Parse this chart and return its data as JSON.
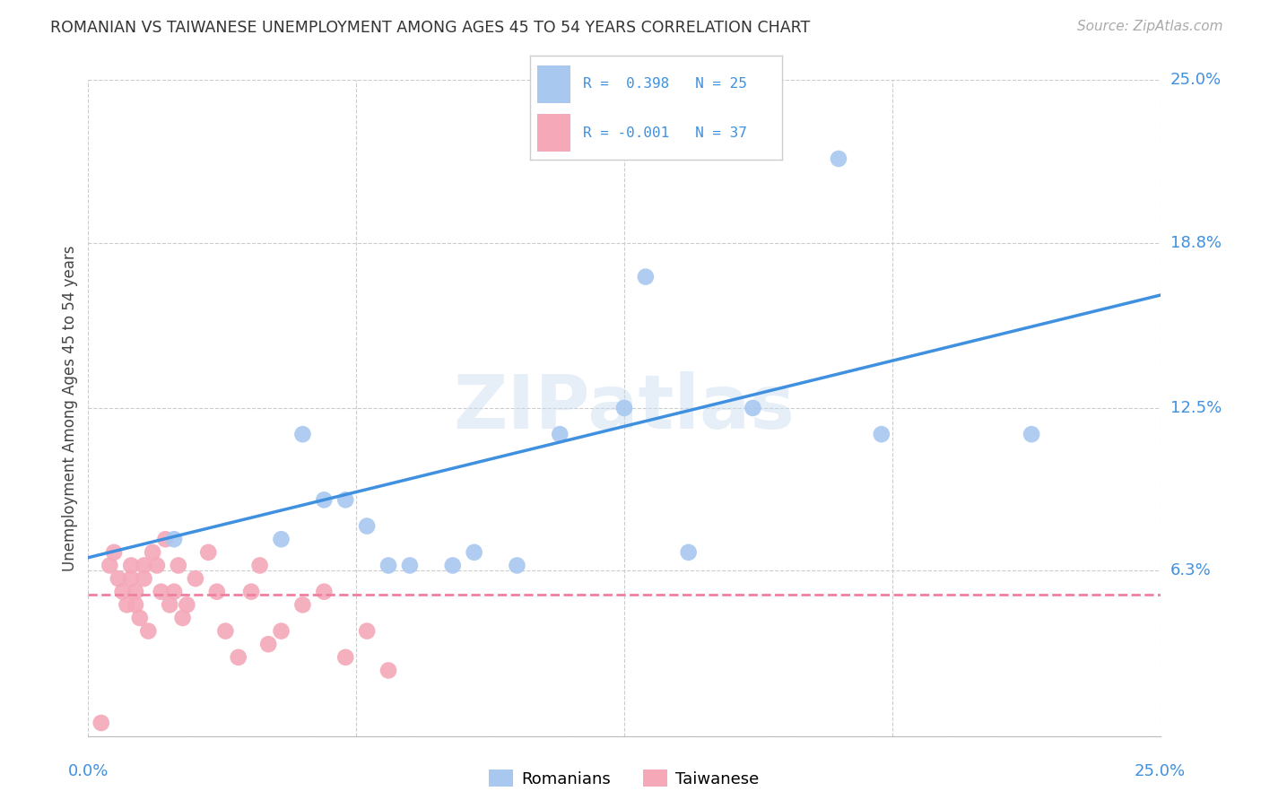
{
  "title": "ROMANIAN VS TAIWANESE UNEMPLOYMENT AMONG AGES 45 TO 54 YEARS CORRELATION CHART",
  "source": "Source: ZipAtlas.com",
  "ylabel": "Unemployment Among Ages 45 to 54 years",
  "xlim": [
    0.0,
    0.25
  ],
  "ylim": [
    0.0,
    0.25
  ],
  "yticks": [
    0.0,
    0.063,
    0.125,
    0.188,
    0.25
  ],
  "ytick_labels": [
    "",
    "6.3%",
    "12.5%",
    "18.8%",
    "25.0%"
  ],
  "watermark": "ZIPatlas",
  "romanian_color": "#a8c8f0",
  "taiwanese_color": "#f4a8b8",
  "line_romanian_color": "#4090e0",
  "line_taiwanese_color": "#f080a0",
  "romanian_x": [
    0.02,
    0.045,
    0.05,
    0.055,
    0.06,
    0.065,
    0.07,
    0.075,
    0.085,
    0.09,
    0.1,
    0.11,
    0.125,
    0.13,
    0.14,
    0.155,
    0.175,
    0.185,
    0.22
  ],
  "romanian_y": [
    0.075,
    0.075,
    0.115,
    0.09,
    0.09,
    0.08,
    0.065,
    0.065,
    0.065,
    0.07,
    0.065,
    0.115,
    0.125,
    0.175,
    0.07,
    0.125,
    0.22,
    0.115,
    0.115
  ],
  "taiwanese_x": [
    0.003,
    0.005,
    0.006,
    0.007,
    0.008,
    0.009,
    0.01,
    0.01,
    0.011,
    0.011,
    0.012,
    0.013,
    0.013,
    0.014,
    0.015,
    0.016,
    0.017,
    0.018,
    0.019,
    0.02,
    0.021,
    0.022,
    0.023,
    0.025,
    0.028,
    0.03,
    0.032,
    0.035,
    0.038,
    0.04,
    0.042,
    0.045,
    0.05,
    0.055,
    0.06,
    0.065,
    0.07
  ],
  "taiwanese_y": [
    0.005,
    0.065,
    0.07,
    0.06,
    0.055,
    0.05,
    0.065,
    0.06,
    0.055,
    0.05,
    0.045,
    0.065,
    0.06,
    0.04,
    0.07,
    0.065,
    0.055,
    0.075,
    0.05,
    0.055,
    0.065,
    0.045,
    0.05,
    0.06,
    0.07,
    0.055,
    0.04,
    0.03,
    0.055,
    0.065,
    0.035,
    0.04,
    0.05,
    0.055,
    0.03,
    0.04,
    0.025
  ],
  "ro_line_x0": 0.0,
  "ro_line_y0": 0.068,
  "ro_line_x1": 0.25,
  "ro_line_y1": 0.168,
  "tw_line_x0": 0.0,
  "tw_line_y0": 0.054,
  "tw_line_x1": 0.25,
  "tw_line_y1": 0.054,
  "background_color": "#ffffff",
  "grid_color": "#cccccc",
  "title_color": "#333333",
  "axis_label_color": "#4090e0",
  "source_color": "#aaaaaa"
}
